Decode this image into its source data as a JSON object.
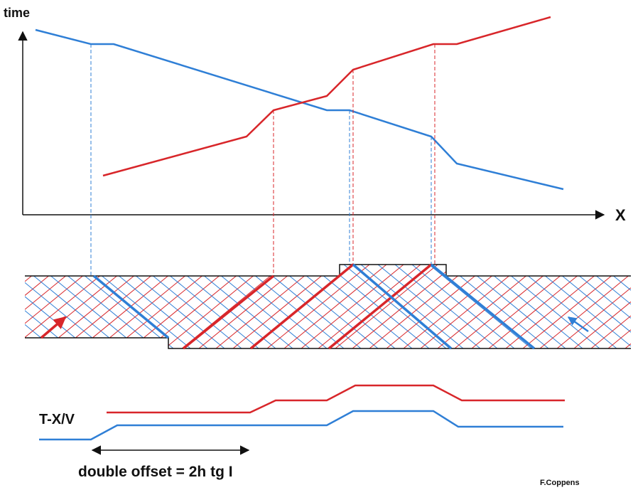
{
  "labels": {
    "time": "time",
    "x": "X",
    "tx": "T-X/V",
    "offset": "double offset = 2h tg I",
    "credit": "F.Coppens"
  }
}
